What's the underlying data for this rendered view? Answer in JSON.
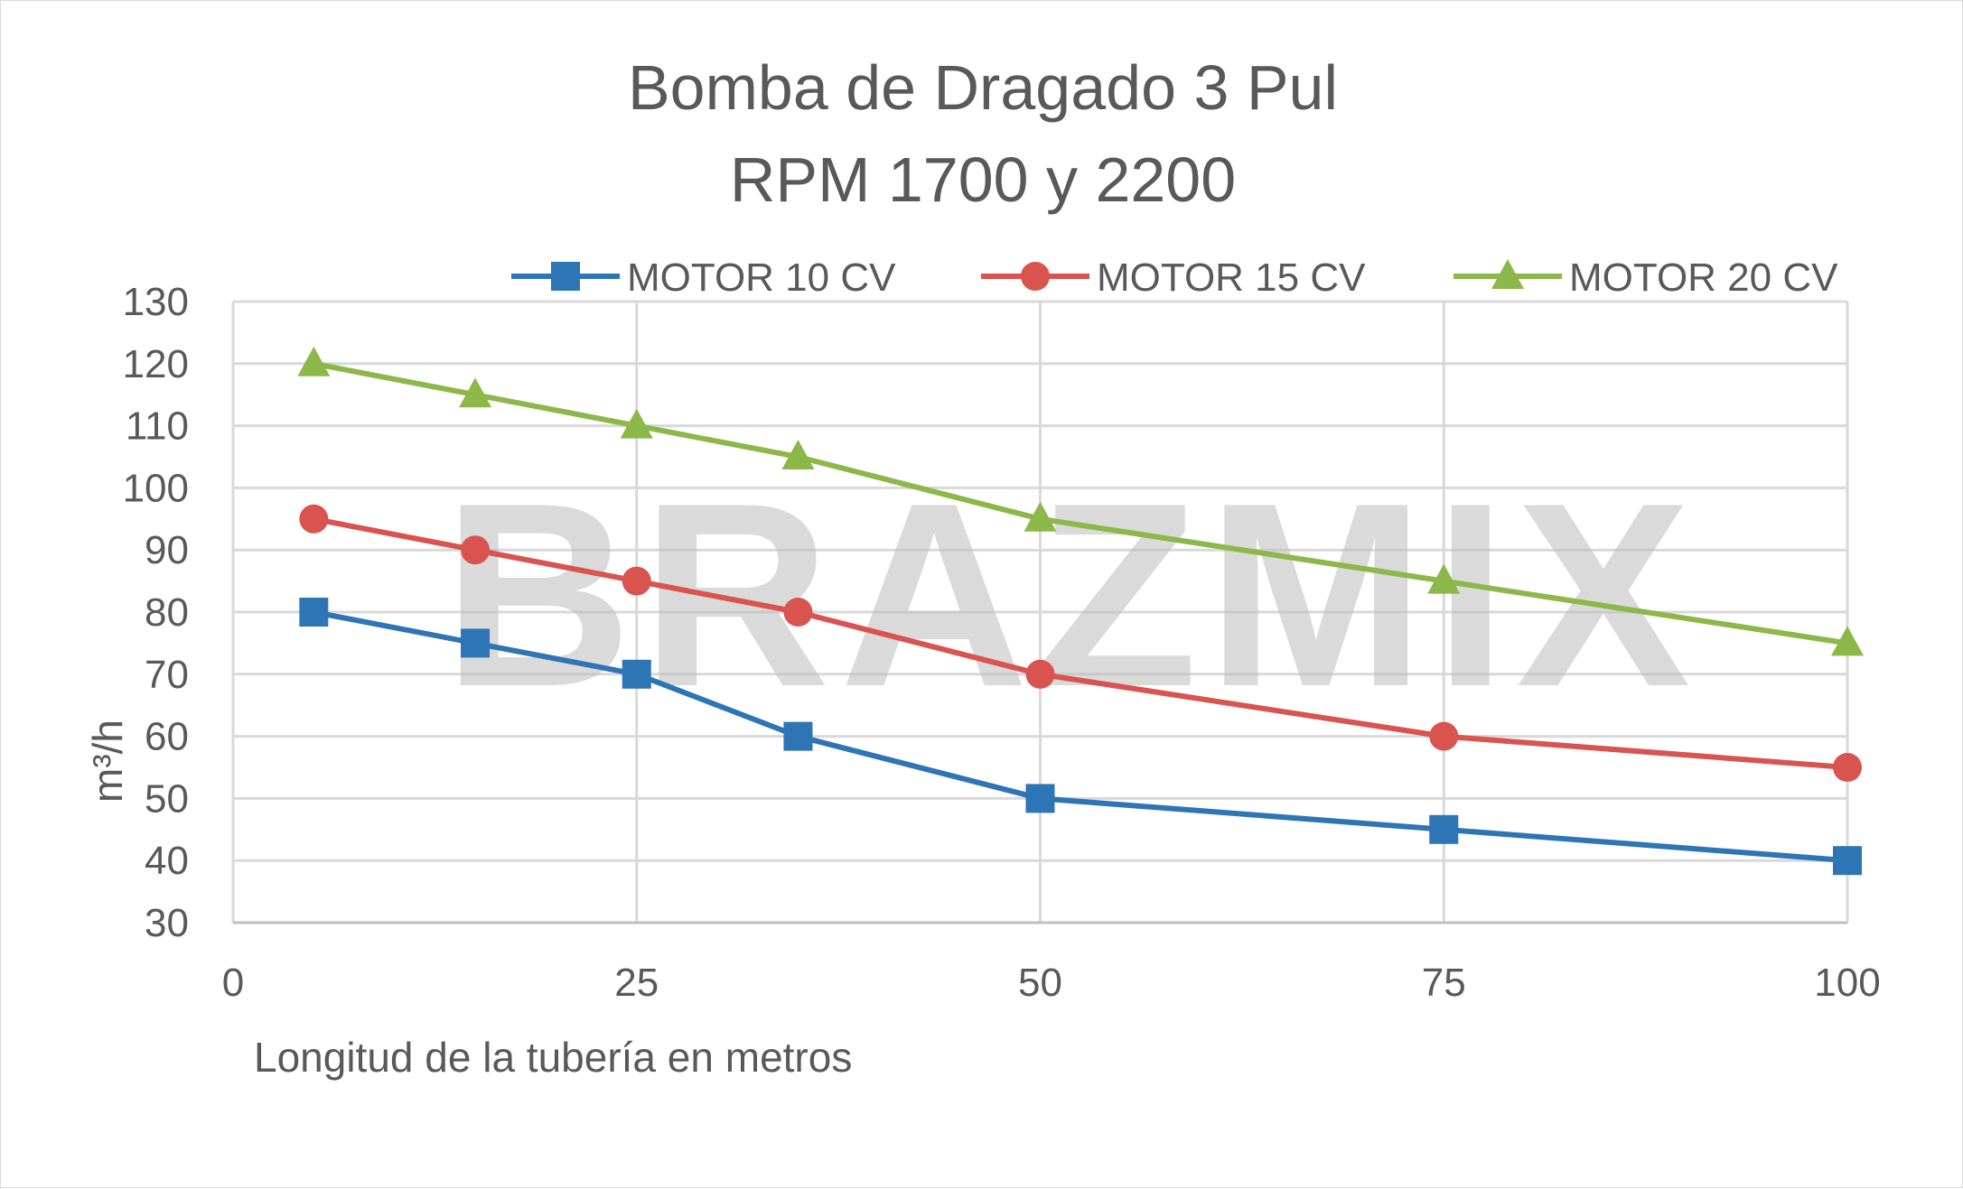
{
  "watermark": "BRAZMIX",
  "chart_data": {
    "type": "line",
    "title": [
      "Bomba de Dragado 3 Pul",
      "RPM 1700 y 2200"
    ],
    "xlabel": "Longitud de la tubería en metros",
    "ylabel": "m³/h",
    "xlim": [
      0,
      100
    ],
    "ylim": [
      30,
      130
    ],
    "xticks": [
      0,
      25,
      50,
      75,
      100
    ],
    "yticks": [
      30,
      40,
      50,
      60,
      70,
      80,
      90,
      100,
      110,
      120,
      130
    ],
    "grid": true,
    "legend_position": "top",
    "series": [
      {
        "name": "MOTOR 10 CV",
        "color": "#2e75b6",
        "marker": "square",
        "points": [
          [
            5,
            80
          ],
          [
            15,
            75
          ],
          [
            25,
            70
          ],
          [
            35,
            60
          ],
          [
            50,
            50
          ],
          [
            75,
            45
          ],
          [
            100,
            40
          ]
        ]
      },
      {
        "name": "MOTOR 15 CV",
        "color": "#d9534f",
        "marker": "circle",
        "points": [
          [
            5,
            95
          ],
          [
            15,
            90
          ],
          [
            25,
            85
          ],
          [
            35,
            80
          ],
          [
            50,
            70
          ],
          [
            75,
            60
          ],
          [
            100,
            55
          ]
        ]
      },
      {
        "name": "MOTOR 20 CV",
        "color": "#8cb84a",
        "marker": "triangle",
        "points": [
          [
            5,
            120
          ],
          [
            15,
            115
          ],
          [
            25,
            110
          ],
          [
            35,
            105
          ],
          [
            50,
            95
          ],
          [
            75,
            85
          ],
          [
            100,
            75
          ]
        ]
      }
    ]
  }
}
